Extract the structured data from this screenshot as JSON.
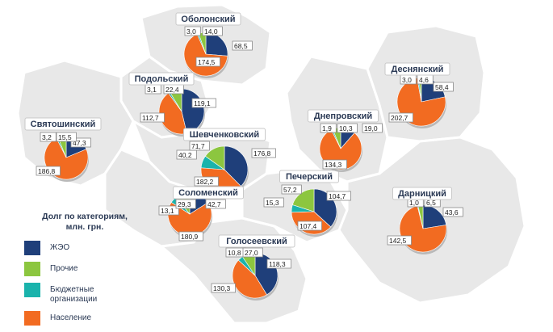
{
  "legend": {
    "title_line1": "Долг по категориям,",
    "title_line2": "млн. грн.",
    "items": [
      {
        "key": "zheo",
        "label": "ЖЭО",
        "color": "#1f3f7a"
      },
      {
        "key": "other",
        "label": "Прочие",
        "color": "#8cc63f"
      },
      {
        "key": "budget",
        "label": "Бюджетные организации",
        "color": "#1ab3ac"
      },
      {
        "key": "population",
        "label": "Население",
        "color": "#f26b21"
      }
    ]
  },
  "chart_data": {
    "type": "pie",
    "categories": [
      "ЖЭО",
      "Прочие",
      "Бюджетные организации",
      "Население"
    ],
    "districts": [
      {
        "name": "Оболонский",
        "zheo": 68.5,
        "other": 14.0,
        "budget": 3.0,
        "population": 174.5
      },
      {
        "name": "Подольский",
        "zheo": 119.1,
        "other": 22.4,
        "budget": 3.1,
        "population": 112.7
      },
      {
        "name": "Святошинский",
        "zheo": 47.3,
        "other": 15.5,
        "budget": 3.2,
        "population": 186.8
      },
      {
        "name": "Шевченковский",
        "zheo": 176.8,
        "other": 71.7,
        "budget": 40.2,
        "population": 182.2
      },
      {
        "name": "Соломенский",
        "zheo": 42.7,
        "other": 29.3,
        "budget": 13.1,
        "population": 180.9
      },
      {
        "name": "Голосеевский",
        "zheo": 118.3,
        "other": 27.0,
        "budget": 10.8,
        "population": 130.3
      },
      {
        "name": "Печерский",
        "zheo": 104.7,
        "other": 57.2,
        "budget": 15.3,
        "population": 107.4
      },
      {
        "name": "Днепровский",
        "zheo": 19.0,
        "other": 10.3,
        "budget": 1.9,
        "population": 134.3
      },
      {
        "name": "Деснянский",
        "zheo": 58.4,
        "other": 4.6,
        "budget": 3.0,
        "population": 202.7
      },
      {
        "name": "Дарницкий",
        "zheo": 43.6,
        "other": 6.5,
        "budget": 1.0,
        "population": 142.5
      }
    ],
    "value_labels": {
      "Оболонский": {
        "zheo": "68,5",
        "other": "14,0",
        "budget": "3,0",
        "population": "174,5"
      },
      "Подольский": {
        "zheo": "119,1",
        "other": "22,4",
        "budget": "3,1",
        "population": "112,7"
      },
      "Святошинский": {
        "zheo": "47,3",
        "other": "15,5",
        "budget": "3,2",
        "population": "186,8"
      },
      "Шевченковский": {
        "zheo": "176,8",
        "other": "71,7",
        "budget": "40,2",
        "population": "182,2"
      },
      "Соломенский": {
        "zheo": "42,7",
        "other": "29,3",
        "budget": "13,1",
        "population": "180,9"
      },
      "Голосеевский": {
        "zheo": "118,3",
        "other": "27,0",
        "budget": "10,8",
        "population": "130,3"
      },
      "Печерский": {
        "zheo": "104,7",
        "other": "57,2",
        "budget": "15,3",
        "population": "107,4"
      },
      "Днепровский": {
        "zheo": "19,0",
        "other": "10,3",
        "budget": "1,9",
        "population": "134,3"
      },
      "Деснянский": {
        "zheo": "58,4",
        "other": "4,6",
        "budget": "3,0",
        "population": "202,7"
      },
      "Дарницкий": {
        "zheo": "43,6",
        "other": "6,5",
        "budget": "1,0",
        "population": "142,5"
      }
    }
  }
}
